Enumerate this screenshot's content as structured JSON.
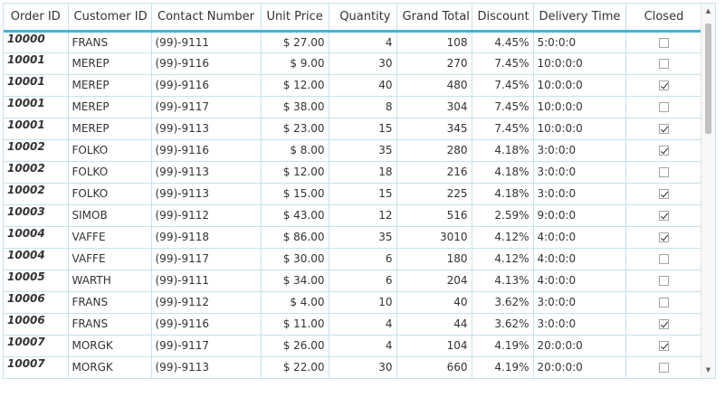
{
  "columns": [
    {
      "key": "order_id",
      "label": "Order ID"
    },
    {
      "key": "customer_id",
      "label": "Customer ID"
    },
    {
      "key": "contact",
      "label": "Contact Number"
    },
    {
      "key": "unit_price",
      "label": "Unit Price"
    },
    {
      "key": "quantity",
      "label": "Quantity"
    },
    {
      "key": "grand_total",
      "label": "Grand Total"
    },
    {
      "key": "discount",
      "label": "Discount"
    },
    {
      "key": "delivery_time",
      "label": "Delivery Time"
    },
    {
      "key": "closed",
      "label": "Closed"
    }
  ],
  "rows": [
    {
      "order_id": "10000",
      "customer_id": "FRANS",
      "contact": "(99)-9111",
      "unit_price": "$ 27.00",
      "quantity": "4",
      "grand_total": "108",
      "discount": "4.45%",
      "delivery_time": "5:0:0:0",
      "closed": false
    },
    {
      "order_id": "10001",
      "customer_id": "MEREP",
      "contact": "(99)-9116",
      "unit_price": "$ 9.00",
      "quantity": "30",
      "grand_total": "270",
      "discount": "7.45%",
      "delivery_time": "10:0:0:0",
      "closed": false
    },
    {
      "order_id": "10001",
      "customer_id": "MEREP",
      "contact": "(99)-9116",
      "unit_price": "$ 12.00",
      "quantity": "40",
      "grand_total": "480",
      "discount": "7.45%",
      "delivery_time": "10:0:0:0",
      "closed": true
    },
    {
      "order_id": "10001",
      "customer_id": "MEREP",
      "contact": "(99)-9117",
      "unit_price": "$ 38.00",
      "quantity": "8",
      "grand_total": "304",
      "discount": "7.45%",
      "delivery_time": "10:0:0:0",
      "closed": false
    },
    {
      "order_id": "10001",
      "customer_id": "MEREP",
      "contact": "(99)-9113",
      "unit_price": "$ 23.00",
      "quantity": "15",
      "grand_total": "345",
      "discount": "7.45%",
      "delivery_time": "10:0:0:0",
      "closed": true
    },
    {
      "order_id": "10002",
      "customer_id": "FOLKO",
      "contact": "(99)-9116",
      "unit_price": "$ 8.00",
      "quantity": "35",
      "grand_total": "280",
      "discount": "4.18%",
      "delivery_time": "3:0:0:0",
      "closed": true
    },
    {
      "order_id": "10002",
      "customer_id": "FOLKO",
      "contact": "(99)-9113",
      "unit_price": "$ 12.00",
      "quantity": "18",
      "grand_total": "216",
      "discount": "4.18%",
      "delivery_time": "3:0:0:0",
      "closed": false
    },
    {
      "order_id": "10002",
      "customer_id": "FOLKO",
      "contact": "(99)-9113",
      "unit_price": "$ 15.00",
      "quantity": "15",
      "grand_total": "225",
      "discount": "4.18%",
      "delivery_time": "3:0:0:0",
      "closed": true
    },
    {
      "order_id": "10003",
      "customer_id": "SIMOB",
      "contact": "(99)-9112",
      "unit_price": "$ 43.00",
      "quantity": "12",
      "grand_total": "516",
      "discount": "2.59%",
      "delivery_time": "9:0:0:0",
      "closed": true
    },
    {
      "order_id": "10004",
      "customer_id": "VAFFE",
      "contact": "(99)-9118",
      "unit_price": "$ 86.00",
      "quantity": "35",
      "grand_total": "3010",
      "discount": "4.12%",
      "delivery_time": "4:0:0:0",
      "closed": true
    },
    {
      "order_id": "10004",
      "customer_id": "VAFFE",
      "contact": "(99)-9117",
      "unit_price": "$ 30.00",
      "quantity": "6",
      "grand_total": "180",
      "discount": "4.12%",
      "delivery_time": "4:0:0:0",
      "closed": false
    },
    {
      "order_id": "10005",
      "customer_id": "WARTH",
      "contact": "(99)-9111",
      "unit_price": "$ 34.00",
      "quantity": "6",
      "grand_total": "204",
      "discount": "4.13%",
      "delivery_time": "4:0:0:0",
      "closed": false
    },
    {
      "order_id": "10006",
      "customer_id": "FRANS",
      "contact": "(99)-9112",
      "unit_price": "$ 4.00",
      "quantity": "10",
      "grand_total": "40",
      "discount": "3.62%",
      "delivery_time": "3:0:0:0",
      "closed": false
    },
    {
      "order_id": "10006",
      "customer_id": "FRANS",
      "contact": "(99)-9116",
      "unit_price": "$ 11.00",
      "quantity": "4",
      "grand_total": "44",
      "discount": "3.62%",
      "delivery_time": "3:0:0:0",
      "closed": true
    },
    {
      "order_id": "10007",
      "customer_id": "MORGK",
      "contact": "(99)-9117",
      "unit_price": "$ 26.00",
      "quantity": "4",
      "grand_total": "104",
      "discount": "4.19%",
      "delivery_time": "20:0:0:0",
      "closed": true
    },
    {
      "order_id": "10007",
      "customer_id": "MORGK",
      "contact": "(99)-9113",
      "unit_price": "$ 22.00",
      "quantity": "30",
      "grand_total": "660",
      "discount": "4.19%",
      "delivery_time": "20:0:0:0",
      "closed": false
    }
  ],
  "scrollbar": {
    "up_icon": "triangle-up-icon",
    "down_icon": "triangle-down-icon"
  },
  "colors": {
    "header_underline": "#3db8d9",
    "grid_line": "#c6e2ec"
  }
}
